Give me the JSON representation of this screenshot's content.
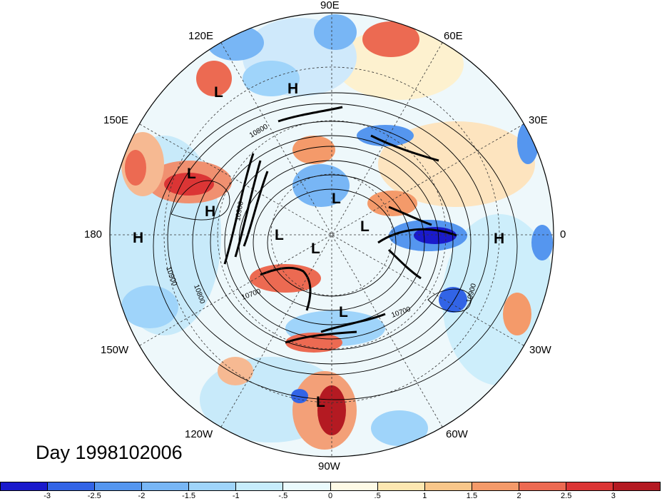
{
  "map": {
    "projection": "north-polar-stereographic",
    "longitude_labels": {
      "e90": "90E",
      "e60": "60E",
      "e30": "30E",
      "zero": "0",
      "w30": "30W",
      "w60": "60W",
      "w90": "90W",
      "w120": "120W",
      "w150": "150W",
      "d180": "180",
      "e150": "150E",
      "e120": "120E"
    },
    "contour_labels": [
      "10800",
      "10900",
      "10900",
      "10800",
      "10700",
      "10700",
      "10900"
    ],
    "pressure_centers": [
      "L",
      "H",
      "L",
      "H",
      "H",
      "L",
      "L",
      "L",
      "L",
      "H",
      "L",
      "L"
    ]
  },
  "footer": {
    "day_label": "Day 1998102006"
  },
  "colorbar": {
    "colors": [
      "#1a1acc",
      "#3264e6",
      "#5596ef",
      "#78b6f5",
      "#9fd4fa",
      "#c6ecfc",
      "#eafafd",
      "#fefae6",
      "#fde7b1",
      "#f8c68a",
      "#f49a6a",
      "#ec6a52",
      "#db3535",
      "#b41a22"
    ],
    "tick_labels": [
      "-3",
      "-2.5",
      "-2",
      "-1.5",
      "-1",
      "-.5",
      "0",
      ".5",
      "1",
      "1.5",
      "2",
      "2.5",
      "3"
    ]
  }
}
